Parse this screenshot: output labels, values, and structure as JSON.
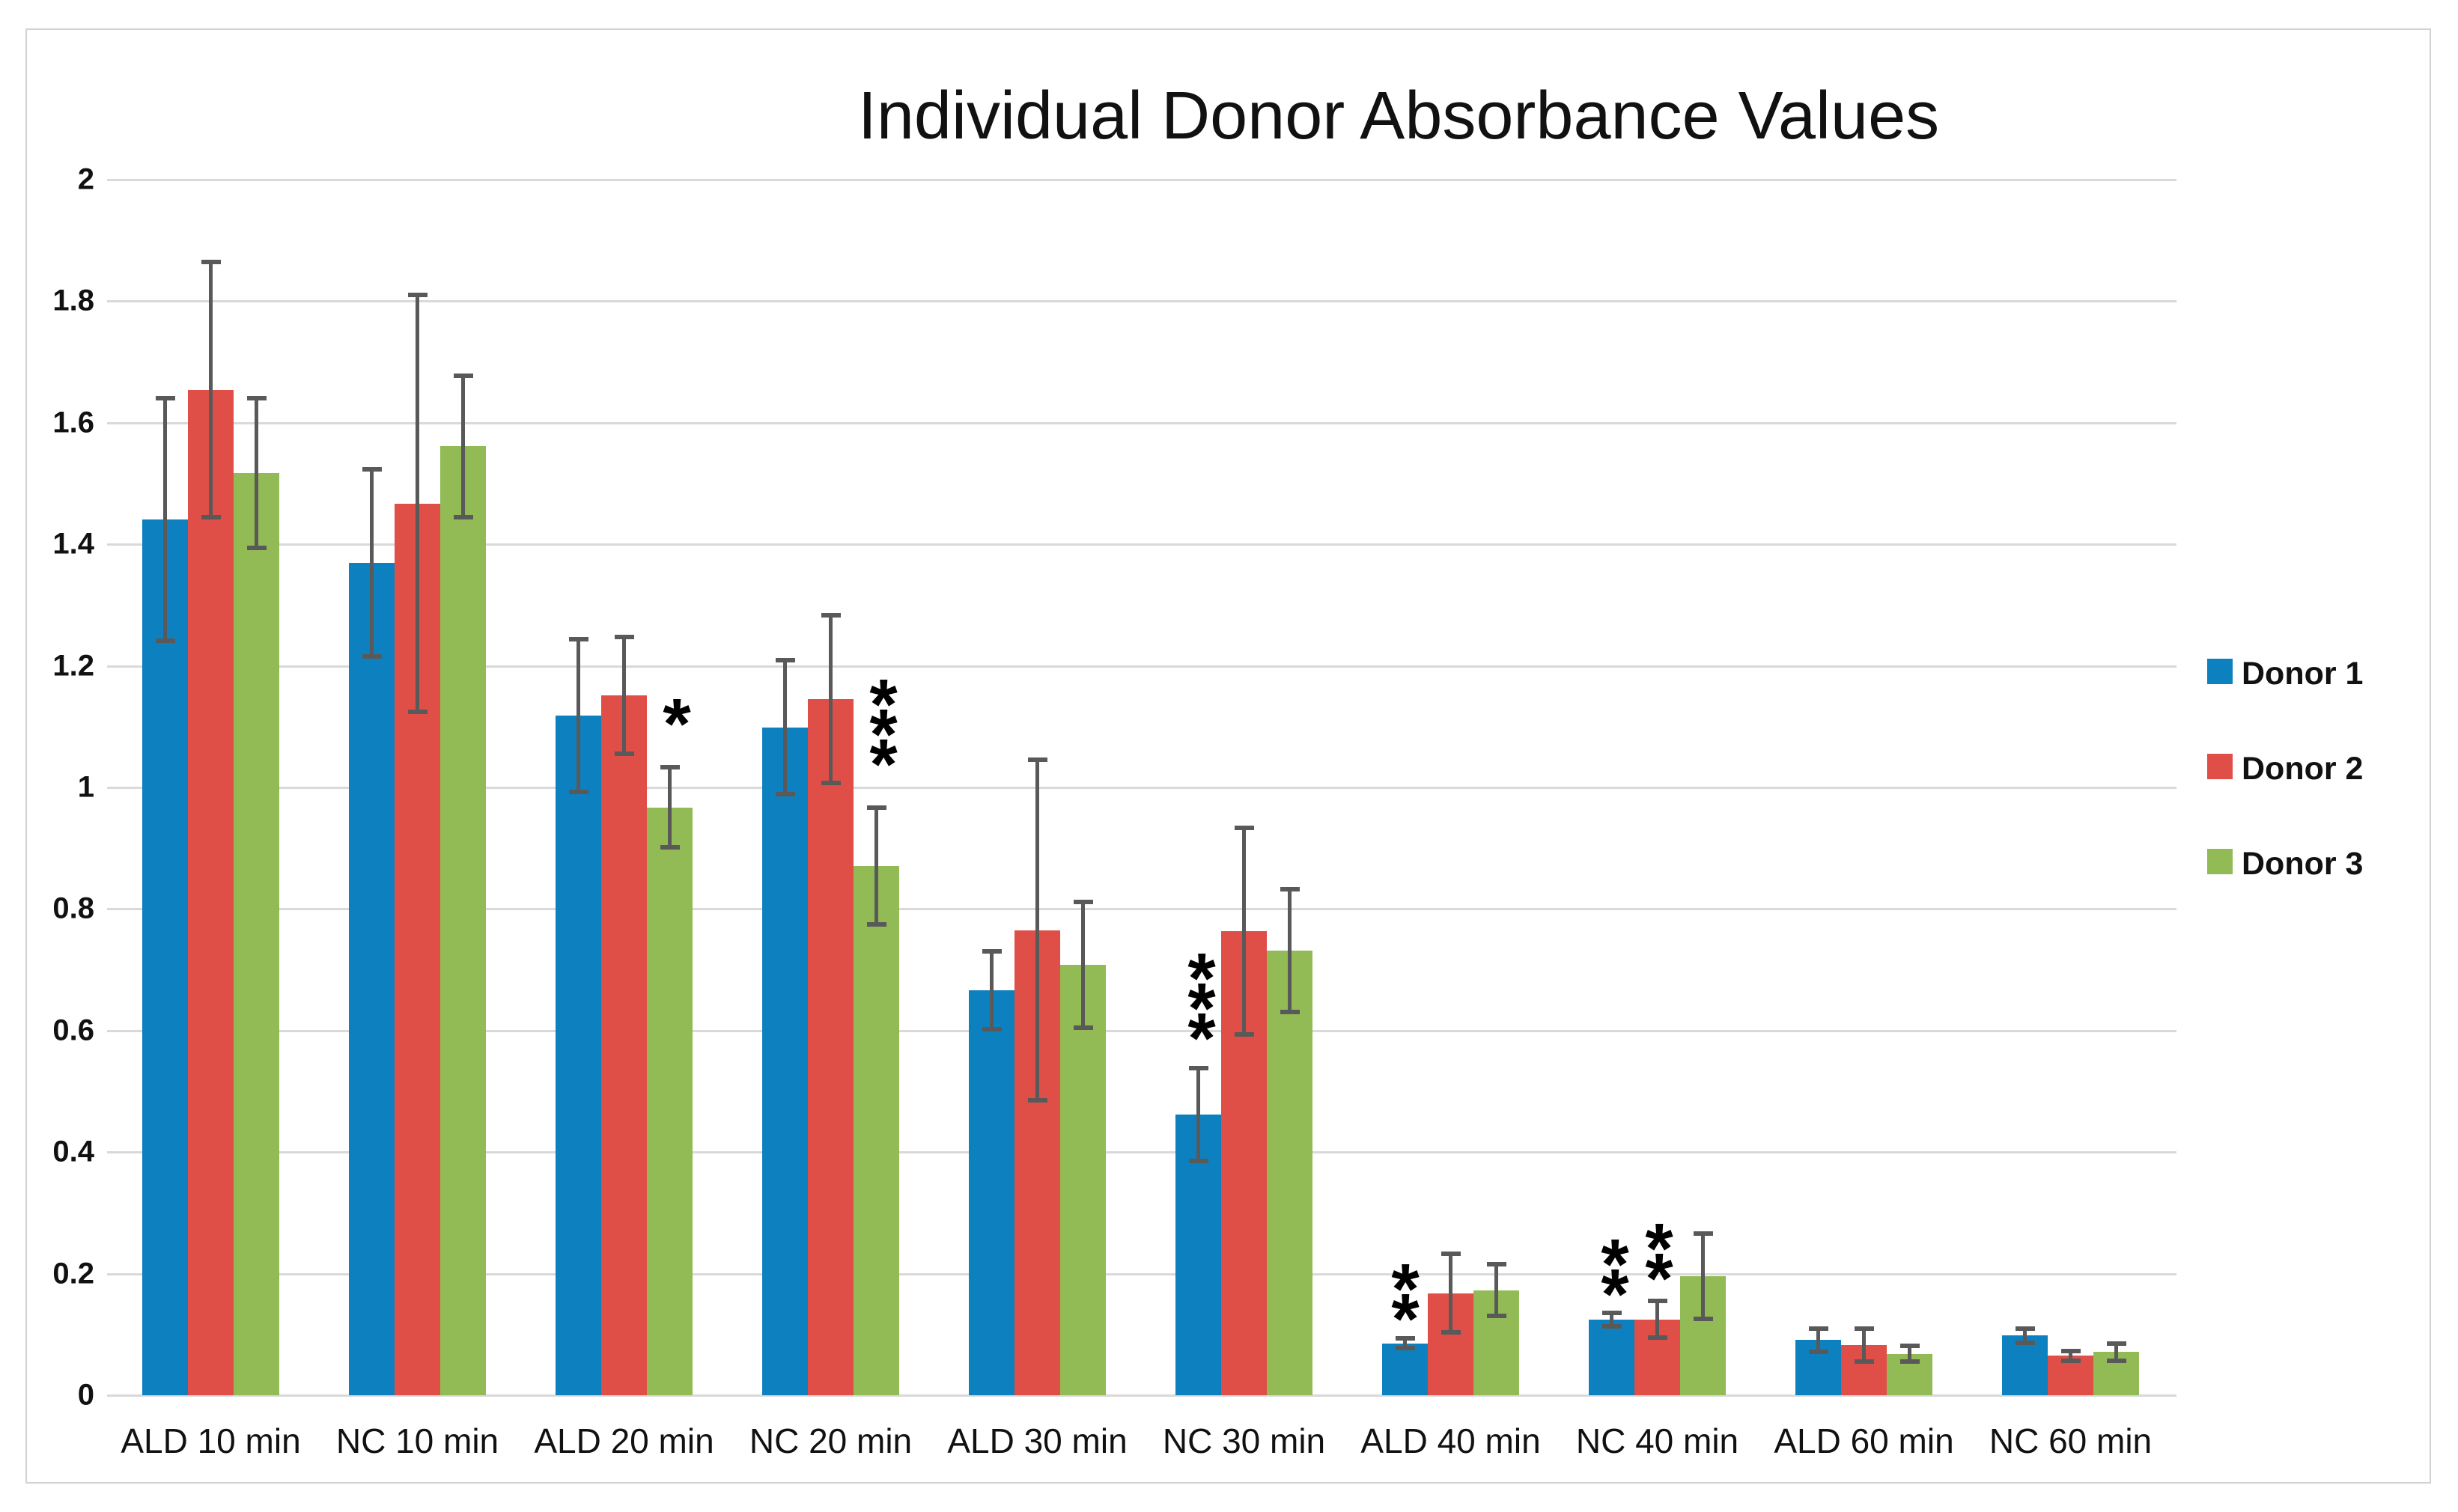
{
  "title": "Individual Donor Absorbance Values",
  "chart_data": {
    "type": "bar",
    "title": "Individual Donor Absorbance Values",
    "categories": [
      "ALD 10 min",
      "NC 10 min",
      "ALD 20 min",
      "NC 20 min",
      "ALD 30 min",
      "NC 30 min",
      "ALD 40 min",
      "NC 40 min",
      "ALD 60 min",
      "NC 60 min"
    ],
    "series": [
      {
        "name": "Donor 1",
        "color": "#0d80c0",
        "values": [
          1.441,
          1.37,
          1.118,
          1.099,
          0.666,
          0.462,
          0.085,
          0.124,
          0.091,
          0.098
        ],
        "errors": [
          0.2,
          0.154,
          0.126,
          0.11,
          0.064,
          0.076,
          0.008,
          0.011,
          0.019,
          0.012
        ]
      },
      {
        "name": "Donor 2",
        "color": "#e04e48",
        "values": [
          1.654,
          1.467,
          1.151,
          1.145,
          0.765,
          0.763,
          0.168,
          0.125,
          0.082,
          0.065
        ],
        "errors": [
          0.21,
          0.343,
          0.096,
          0.138,
          0.28,
          0.17,
          0.065,
          0.03,
          0.027,
          0.008
        ]
      },
      {
        "name": "Donor 3",
        "color": "#92ba55",
        "values": [
          1.517,
          1.561,
          0.967,
          0.871,
          0.708,
          0.731,
          0.173,
          0.196,
          0.068,
          0.071
        ],
        "errors": [
          0.123,
          0.116,
          0.066,
          0.096,
          0.103,
          0.101,
          0.043,
          0.07,
          0.013,
          0.014
        ]
      }
    ],
    "xlabel": "",
    "ylabel": "",
    "ylim": [
      0,
      2
    ],
    "ytick_step": 0.2,
    "ytick_labels": [
      "0",
      "0.2",
      "0.4",
      "0.6",
      "0.8",
      "1",
      "1.2",
      "1.4",
      "1.6",
      "1.8",
      "2"
    ],
    "grid": true,
    "error_bar_color": "#595959",
    "gridline_color": "#d9d9d9",
    "legend_position": "right",
    "annotations": [
      {
        "category": "ALD 20 min",
        "symbols": "*",
        "near_series": "Donor 3",
        "approx_value": 1.12,
        "x": 904,
        "y_centers": [
          955
        ]
      },
      {
        "category": "NC 20 min",
        "symbols": "***",
        "near_series": "Donor 3",
        "approx_value": 1.1,
        "x": 1180,
        "y_centers": [
          929,
          969,
          1009
        ]
      },
      {
        "category": "NC 30 min",
        "symbols": "***",
        "near_series": "Donor 1",
        "approx_value": 0.64,
        "x": 1605,
        "y_centers": [
          1295,
          1335,
          1375
        ]
      },
      {
        "category": "ALD 40 min",
        "symbols": "**",
        "near_series": "Donor 1",
        "approx_value": 0.16,
        "x": 1877,
        "y_centers": [
          1710,
          1750
        ]
      },
      {
        "category": "NC 40 min",
        "symbols": "**",
        "near_series": "Donor 1",
        "approx_value": 0.2,
        "x": 2157,
        "y_centers": [
          1677,
          1717
        ]
      },
      {
        "category": "NC 40 min",
        "symbols": "**",
        "near_series": "Donor 2",
        "approx_value": 0.23,
        "x": 2216,
        "y_centers": [
          1656,
          1696
        ]
      }
    ]
  },
  "legend": {
    "items": [
      {
        "label": "Donor 1",
        "color": "#0d80c0"
      },
      {
        "label": "Donor 2",
        "color": "#e04e48"
      },
      {
        "label": "Donor 3",
        "color": "#92ba55"
      }
    ]
  }
}
